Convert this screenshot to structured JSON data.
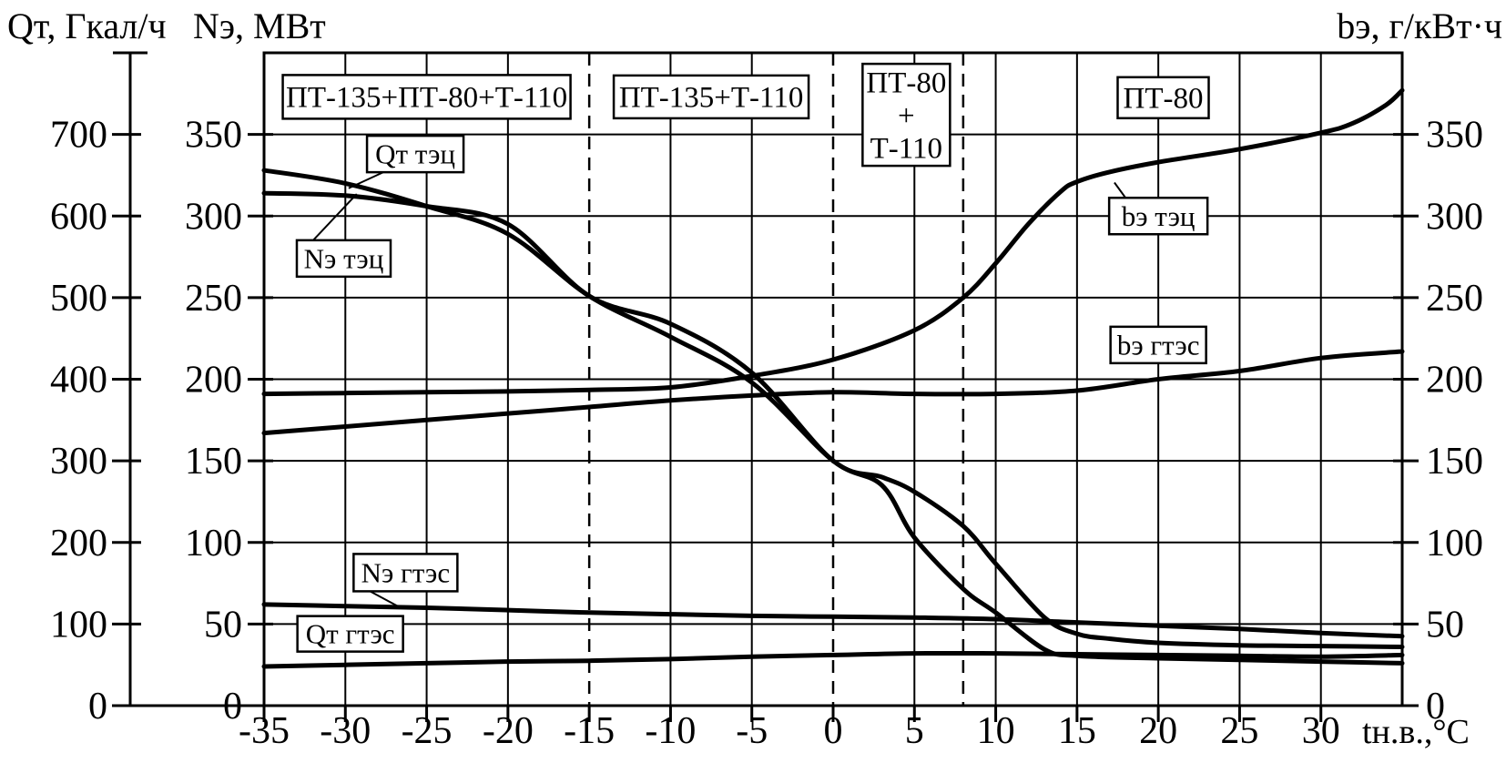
{
  "colors": {
    "ink": "#000000",
    "background": "#ffffff"
  },
  "titles": {
    "left_heat_axis": "Qт, Гкал/ч",
    "left_power_axis": "Nэ, МВт",
    "right_rate_axis": "bэ, г/кВт·ч",
    "x_axis": "tн.в.,°C"
  },
  "chart_data": {
    "type": "line",
    "grid": true,
    "x_axis": {
      "label": "tн.в.,°C",
      "unit": "°C",
      "range": [
        -35,
        35
      ],
      "tick_labels": [
        -35,
        -30,
        -25,
        -20,
        -15,
        -10,
        -5,
        0,
        5,
        10,
        15,
        20,
        25,
        30
      ],
      "solid_gridlines": [
        -30,
        -25,
        -20,
        -10,
        -5,
        5,
        10,
        15,
        20,
        25,
        30
      ],
      "dashed_boundaries": [
        -15,
        0,
        8
      ]
    },
    "y_axes": [
      {
        "id": "Q",
        "label": "Qт, Гкал/ч",
        "range": [
          0,
          800
        ],
        "ticks": [
          0,
          100,
          200,
          300,
          400,
          500,
          600,
          700
        ],
        "side": "outer-left"
      },
      {
        "id": "N",
        "label": "Nэ, МВт",
        "range": [
          0,
          400
        ],
        "ticks": [
          0,
          50,
          100,
          150,
          200,
          250,
          300,
          350
        ],
        "side": "left"
      },
      {
        "id": "b",
        "label": "bэ, г/кВт·ч",
        "range": [
          0,
          400
        ],
        "ticks": [
          0,
          50,
          100,
          150,
          200,
          250,
          300,
          350
        ],
        "side": "right"
      }
    ],
    "series": [
      {
        "id": "qt-tec",
        "name": "Qт тэц",
        "axis": "Q",
        "points": [
          [
            -35,
            656
          ],
          [
            -30,
            640
          ],
          [
            -25,
            612
          ],
          [
            -20,
            578
          ],
          [
            -15,
            502
          ],
          [
            -10,
            452
          ],
          [
            -5,
            396
          ],
          [
            0,
            300
          ],
          [
            3,
            270
          ],
          [
            5,
            206
          ],
          [
            8,
            143
          ],
          [
            10,
            114
          ],
          [
            13,
            69
          ],
          [
            15,
            61
          ],
          [
            20,
            58
          ],
          [
            25,
            56
          ],
          [
            30,
            54
          ],
          [
            35,
            52
          ]
        ]
      },
      {
        "id": "ne-tec",
        "name": "Nэ тэц",
        "axis": "N",
        "points": [
          [
            -35,
            314
          ],
          [
            -30,
            312.5
          ],
          [
            -25,
            306
          ],
          [
            -20,
            295
          ],
          [
            -15,
            251
          ],
          [
            -10,
            234
          ],
          [
            -5,
            204
          ],
          [
            0,
            150
          ],
          [
            3,
            140
          ],
          [
            5,
            131
          ],
          [
            8,
            110
          ],
          [
            10,
            87
          ],
          [
            13,
            54
          ],
          [
            15,
            44
          ],
          [
            17,
            41
          ],
          [
            20,
            38.5
          ],
          [
            25,
            37
          ],
          [
            30,
            36.5
          ],
          [
            35,
            36
          ]
        ]
      },
      {
        "id": "be-tec",
        "name": "bэ тэц",
        "axis": "b",
        "points": [
          [
            -35,
            191
          ],
          [
            -30,
            191.5
          ],
          [
            -25,
            192
          ],
          [
            -20,
            192.5
          ],
          [
            -15,
            193.5
          ],
          [
            -10,
            195
          ],
          [
            -5,
            202
          ],
          [
            0,
            212
          ],
          [
            5,
            230
          ],
          [
            8,
            250
          ],
          [
            10,
            271
          ],
          [
            12,
            295
          ],
          [
            14,
            315
          ],
          [
            15,
            321
          ],
          [
            17,
            327
          ],
          [
            20,
            333
          ],
          [
            25,
            341
          ],
          [
            30,
            351
          ],
          [
            32,
            357
          ],
          [
            34,
            368
          ],
          [
            35,
            377
          ]
        ]
      },
      {
        "id": "be-gtes",
        "name": "bэ гтэс",
        "axis": "b",
        "points": [
          [
            -35,
            167
          ],
          [
            -30,
            171
          ],
          [
            -25,
            175
          ],
          [
            -20,
            179
          ],
          [
            -15,
            183
          ],
          [
            -10,
            187
          ],
          [
            -5,
            190
          ],
          [
            0,
            192
          ],
          [
            5,
            191
          ],
          [
            10,
            191
          ],
          [
            15,
            193
          ],
          [
            20,
            200
          ],
          [
            25,
            205
          ],
          [
            30,
            213
          ],
          [
            35,
            217
          ]
        ]
      },
      {
        "id": "ne-gtes",
        "name": "Nэ гтэс",
        "axis": "N",
        "points": [
          [
            -35,
            62
          ],
          [
            -30,
            61
          ],
          [
            -25,
            60
          ],
          [
            -20,
            58.5
          ],
          [
            -15,
            57
          ],
          [
            -10,
            56
          ],
          [
            -5,
            55
          ],
          [
            0,
            54.5
          ],
          [
            5,
            54
          ],
          [
            10,
            53
          ],
          [
            15,
            51
          ],
          [
            20,
            49
          ],
          [
            25,
            47
          ],
          [
            30,
            44.5
          ],
          [
            35,
            42.5
          ]
        ]
      },
      {
        "id": "qt-gtes",
        "name": "Qт гтэс",
        "axis": "Q",
        "points": [
          [
            -35,
            48
          ],
          [
            -30,
            50
          ],
          [
            -25,
            52
          ],
          [
            -20,
            54
          ],
          [
            -15,
            55
          ],
          [
            -10,
            57
          ],
          [
            -5,
            60
          ],
          [
            0,
            62
          ],
          [
            5,
            64
          ],
          [
            10,
            64
          ],
          [
            15,
            63
          ],
          [
            20,
            62
          ],
          [
            25,
            61
          ],
          [
            30,
            60
          ],
          [
            35,
            62
          ]
        ]
      }
    ],
    "region_labels": [
      {
        "id": "r1",
        "lines": [
          "ПТ-135+ПТ-80+Т-110"
        ],
        "t": -25.0,
        "v": 373
      },
      {
        "id": "r2",
        "lines": [
          "ПТ-135+Т-110"
        ],
        "t": -7.5,
        "v": 373
      },
      {
        "id": "r3",
        "lines": [
          "ПТ-80",
          "+",
          "Т-110"
        ],
        "t": 4.5,
        "v": 362
      },
      {
        "id": "r4",
        "lines": [
          "ПТ-80"
        ],
        "t": 20.3,
        "v": 372.5
      }
    ],
    "curve_labels": [
      {
        "id": "qt-tec",
        "text": "Qт тэц",
        "t": -25.7,
        "v": 338,
        "leader": {
          "t": -29.8,
          "v": 317
        }
      },
      {
        "id": "ne-tec",
        "text": "Nэ тэц",
        "t": -30.1,
        "v": 274,
        "leader": {
          "t": -29.3,
          "v": 313.5
        }
      },
      {
        "id": "be-tec",
        "text": "bэ тэц",
        "t": 20.0,
        "v": 300,
        "leader": {
          "t": 17.3,
          "v": 320.5
        }
      },
      {
        "id": "be-gtes",
        "text": "bэ гтэс",
        "t": 20.0,
        "v": 221,
        "leader": null
      },
      {
        "id": "ne-gtes",
        "text": "Nэ гтэс",
        "t": -26.3,
        "v": 81.5,
        "leader": {
          "t": -26.7,
          "v": 60.5
        }
      },
      {
        "id": "qt-gtes",
        "text": "Qт гтэс",
        "t": -29.7,
        "v": 44,
        "leader": null
      }
    ]
  }
}
